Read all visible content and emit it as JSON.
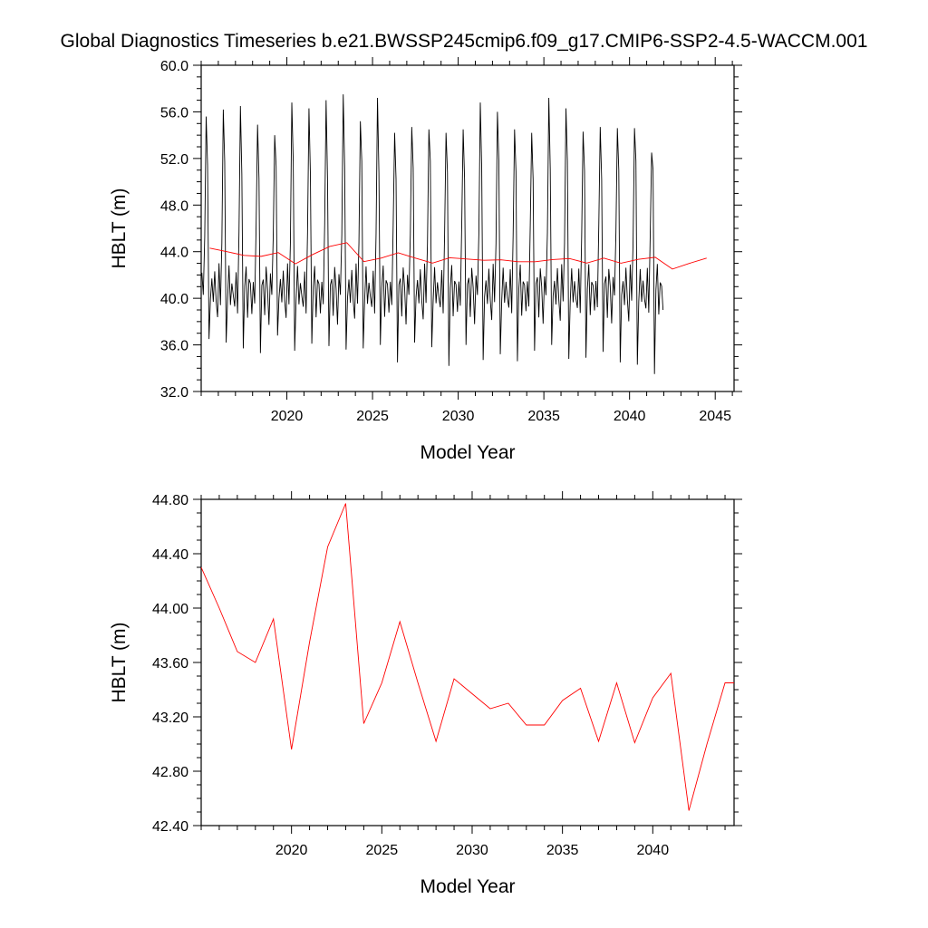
{
  "title": "Global Diagnostics Timeseries b.e21.BWSSP245cmip6.f09_g17.CMIP6-SSP2-4.5-WACCM.001",
  "colors": {
    "monthly_line": "#000000",
    "annual_line": "#ff0000",
    "axes": "#000000"
  },
  "chart_data": [
    {
      "type": "line",
      "xlabel": "Model Year",
      "ylabel": "HBLT (m)",
      "xlim": [
        2015,
        2046.1
      ],
      "ylim": [
        32.0,
        60.0
      ],
      "x_ticks": [
        2020,
        2025,
        2030,
        2035,
        2040,
        2045
      ],
      "y_ticks": [
        "32.0",
        "36.0",
        "40.0",
        "44.0",
        "48.0",
        "52.0",
        "56.0",
        "60.0"
      ],
      "series": [
        {
          "color": "#000000",
          "x_start": 2015.04,
          "x_step": 0.08333,
          "monthly_template": [
            42.2,
            39.5,
            45.5,
            55.6,
            51.0,
            37.2,
            40.5,
            42.2,
            39.0,
            42.0,
            40.5,
            38.5
          ],
          "annual_peaks": [
            55.6,
            56.2,
            56.5,
            54.9,
            54.0,
            56.8,
            56.3,
            57.0,
            57.5,
            55.2,
            57.2,
            54.2,
            54.7,
            54.5,
            54.2,
            54.5,
            56.8,
            56.0,
            54.5,
            54.2,
            57.2,
            56.3,
            54.3,
            54.7,
            54.6,
            54.6,
            52.5
          ],
          "annual_troughs": [
            36.5,
            36.2,
            35.7,
            35.3,
            36.8,
            35.5,
            36.1,
            35.9,
            35.6,
            35.7,
            36.0,
            34.5,
            36.2,
            35.8,
            34.2,
            36.0,
            34.7,
            35.2,
            34.6,
            35.5,
            36.0,
            34.8,
            34.9,
            35.4,
            34.5,
            34.3,
            33.5
          ]
        },
        {
          "color": "#ff0000",
          "x": [
            2015.5,
            2016.5,
            2017.5,
            2018.5,
            2019.5,
            2020.5,
            2021.5,
            2022.5,
            2023.5,
            2024.5,
            2025.5,
            2026.5,
            2027.5,
            2028.5,
            2029.5,
            2030.5,
            2031.5,
            2032.5,
            2033.5,
            2034.5,
            2035.5,
            2036.5,
            2037.5,
            2038.5,
            2039.5,
            2040.5,
            2041.5,
            2042.5,
            2043.5,
            2044.5
          ],
          "values": [
            44.3,
            44.0,
            43.68,
            43.6,
            43.92,
            42.96,
            43.75,
            44.45,
            44.77,
            43.15,
            43.45,
            43.9,
            43.45,
            43.02,
            43.48,
            43.37,
            43.26,
            43.3,
            43.14,
            43.14,
            43.32,
            43.41,
            43.02,
            43.45,
            43.01,
            43.34,
            43.52,
            42.51,
            43.0,
            43.45
          ]
        }
      ]
    },
    {
      "type": "line",
      "xlabel": "Model Year",
      "ylabel": "HBLT (m)",
      "xlim": [
        2015.0,
        2044.5
      ],
      "ylim": [
        42.4,
        44.8
      ],
      "x_ticks": [
        2020,
        2025,
        2030,
        2035,
        2040
      ],
      "y_ticks": [
        "42.40",
        "42.80",
        "43.20",
        "43.60",
        "44.00",
        "44.40",
        "44.80"
      ],
      "series": [
        {
          "color": "#ff0000",
          "x": [
            2015.0,
            2016.0,
            2017.0,
            2018.0,
            2019.0,
            2020.0,
            2021.0,
            2022.0,
            2023.0,
            2024.0,
            2025.0,
            2026.0,
            2027.0,
            2028.0,
            2029.0,
            2030.0,
            2031.0,
            2032.0,
            2033.0,
            2034.0,
            2035.0,
            2036.0,
            2037.0,
            2038.0,
            2039.0,
            2040.0,
            2041.0,
            2042.0,
            2043.0,
            2044.0,
            2044.5
          ],
          "values": [
            44.3,
            44.0,
            43.68,
            43.6,
            43.92,
            42.96,
            43.75,
            44.45,
            44.77,
            43.15,
            43.45,
            43.9,
            43.45,
            43.02,
            43.48,
            43.37,
            43.26,
            43.3,
            43.14,
            43.14,
            43.32,
            43.41,
            43.02,
            43.45,
            43.01,
            43.34,
            43.52,
            42.51,
            43.0,
            43.45,
            43.45
          ]
        }
      ]
    }
  ]
}
